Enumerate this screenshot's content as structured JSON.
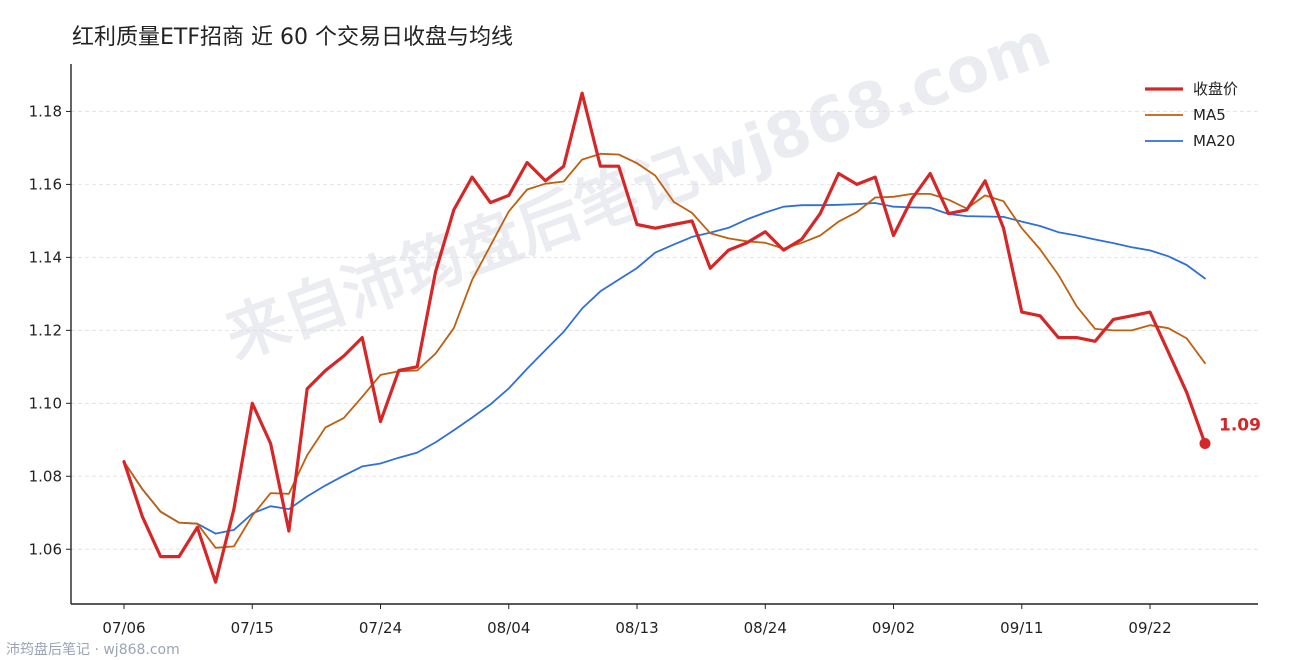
{
  "chart_data": {
    "type": "line",
    "title": "红利质量ETF招商 近 60 个交易日收盘与均线",
    "xlabel": "",
    "ylabel": "",
    "ylim": [
      1.045,
      1.193
    ],
    "yticks": [
      "1.06",
      "1.08",
      "1.10",
      "1.12",
      "1.14",
      "1.16",
      "1.18"
    ],
    "ytick_values": [
      1.06,
      1.08,
      1.1,
      1.12,
      1.14,
      1.16,
      1.18
    ],
    "xticks": [
      {
        "index": 0,
        "label": "07/06"
      },
      {
        "index": 7,
        "label": "07/15"
      },
      {
        "index": 14,
        "label": "07/24"
      },
      {
        "index": 21,
        "label": "08/04"
      },
      {
        "index": 28,
        "label": "08/13"
      },
      {
        "index": 35,
        "label": "08/24"
      },
      {
        "index": 42,
        "label": "09/02"
      },
      {
        "index": 49,
        "label": "09/11"
      },
      {
        "index": 56,
        "label": "09/22"
      }
    ],
    "grid": "horizontal dashed",
    "legend_position": "top-right",
    "end_label": "1.09",
    "series": [
      {
        "name": "收盘价",
        "color": "#d62728",
        "values": [
          1.084,
          1.069,
          1.058,
          1.058,
          1.066,
          1.051,
          1.071,
          1.1,
          1.089,
          1.065,
          1.104,
          1.109,
          1.113,
          1.118,
          1.095,
          1.109,
          1.11,
          1.136,
          1.153,
          1.162,
          1.155,
          1.157,
          1.166,
          1.161,
          1.165,
          1.185,
          1.165,
          1.165,
          1.149,
          1.148,
          1.149,
          1.15,
          1.137,
          1.142,
          1.144,
          1.147,
          1.142,
          1.145,
          1.152,
          1.163,
          1.16,
          1.162,
          1.146,
          1.156,
          1.163,
          1.152,
          1.153,
          1.161,
          1.148,
          1.125,
          1.124,
          1.118,
          1.118,
          1.117,
          1.123,
          1.124,
          1.125,
          1.114,
          1.103,
          1.089
        ]
      },
      {
        "name": "MA5",
        "color": "#c0600f",
        "values": [
          1.084,
          1.0765,
          1.0703,
          1.0673,
          1.067,
          1.0604,
          1.0608,
          1.0692,
          1.0754,
          1.0752,
          1.0858,
          1.0934,
          1.096,
          1.1018,
          1.1078,
          1.1088,
          1.109,
          1.1136,
          1.1206,
          1.1338,
          1.1432,
          1.1526,
          1.1586,
          1.1602,
          1.1608,
          1.1668,
          1.1684,
          1.1682,
          1.1658,
          1.1624,
          1.1552,
          1.1522,
          1.1466,
          1.1452,
          1.1444,
          1.144,
          1.1424,
          1.144,
          1.146,
          1.1498,
          1.1524,
          1.1564,
          1.1566,
          1.1574,
          1.1574,
          1.1558,
          1.1534,
          1.157,
          1.1554,
          1.148,
          1.1422,
          1.1352,
          1.1266,
          1.1204,
          1.12,
          1.12,
          1.1214,
          1.1206,
          1.1178,
          1.111
        ]
      },
      {
        "name": "MA20",
        "color": "#2f6fdb",
        "values": [
          1.084,
          1.0765,
          1.0703,
          1.0673,
          1.067,
          1.0643,
          1.0653,
          1.0698,
          1.0718,
          1.071,
          1.0745,
          1.0775,
          1.0802,
          1.0827,
          1.0835,
          1.0851,
          1.0865,
          1.0893,
          1.0926,
          1.0961,
          1.0997,
          1.1041,
          1.1095,
          1.1146,
          1.1196,
          1.126,
          1.1307,
          1.1339,
          1.1371,
          1.1413,
          1.1435,
          1.1456,
          1.1468,
          1.1481,
          1.1504,
          1.1523,
          1.1539,
          1.1543,
          1.1543,
          1.1544,
          1.1546,
          1.1549,
          1.1539,
          1.1537,
          1.1536,
          1.1519,
          1.1513,
          1.1512,
          1.1511,
          1.1498,
          1.1486,
          1.1469,
          1.146,
          1.1449,
          1.1439,
          1.1428,
          1.1419,
          1.1403,
          1.1379,
          1.1342
        ]
      }
    ]
  },
  "watermark": "来自沛筠盘后笔记wj868.com",
  "footer": "沛筠盘后笔记 · wj868.com"
}
